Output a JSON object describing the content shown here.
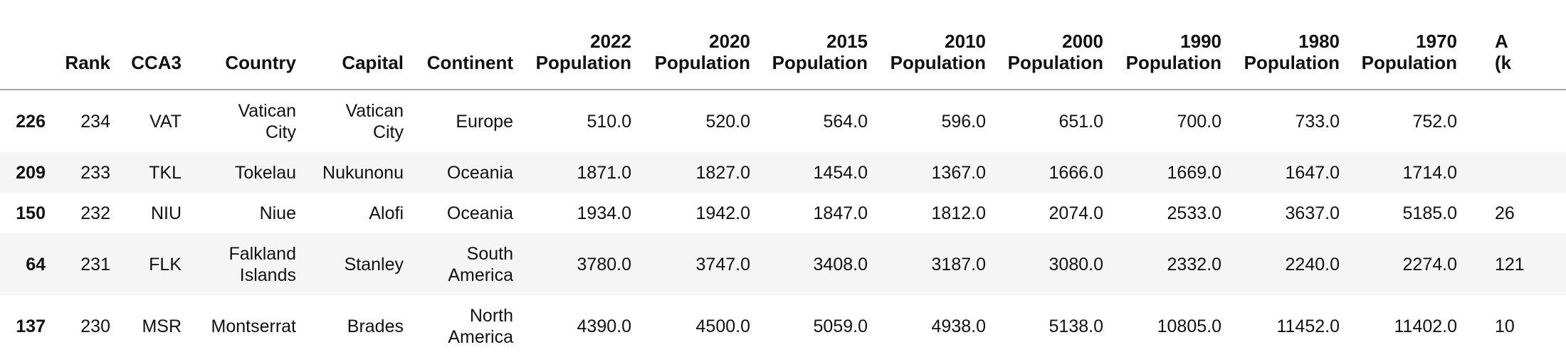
{
  "table": {
    "columns": [
      "",
      "Rank",
      "CCA3",
      "Country",
      "Capital",
      "Continent",
      "2022 Population",
      "2020 Population",
      "2015 Population",
      "2010 Population",
      "2000 Population",
      "1990 Population",
      "1980 Population",
      "1970 Population",
      "A (k"
    ],
    "rows": [
      [
        "226",
        "234",
        "VAT",
        "Vatican City",
        "Vatican City",
        "Europe",
        "510.0",
        "520.0",
        "564.0",
        "596.0",
        "651.0",
        "700.0",
        "733.0",
        "752.0",
        ""
      ],
      [
        "209",
        "233",
        "TKL",
        "Tokelau",
        "Nukunonu",
        "Oceania",
        "1871.0",
        "1827.0",
        "1454.0",
        "1367.0",
        "1666.0",
        "1669.0",
        "1647.0",
        "1714.0",
        ""
      ],
      [
        "150",
        "232",
        "NIU",
        "Niue",
        "Alofi",
        "Oceania",
        "1934.0",
        "1942.0",
        "1847.0",
        "1812.0",
        "2074.0",
        "2533.0",
        "3637.0",
        "5185.0",
        "26"
      ],
      [
        "64",
        "231",
        "FLK",
        "Falkland Islands",
        "Stanley",
        "South America",
        "3780.0",
        "3747.0",
        "3408.0",
        "3187.0",
        "3080.0",
        "2332.0",
        "2240.0",
        "2274.0",
        "121"
      ],
      [
        "137",
        "230",
        "MSR",
        "Montserrat",
        "Brades",
        "North America",
        "4390.0",
        "4500.0",
        "5059.0",
        "4938.0",
        "5138.0",
        "10805.0",
        "11452.0",
        "11402.0",
        "10"
      ]
    ]
  }
}
